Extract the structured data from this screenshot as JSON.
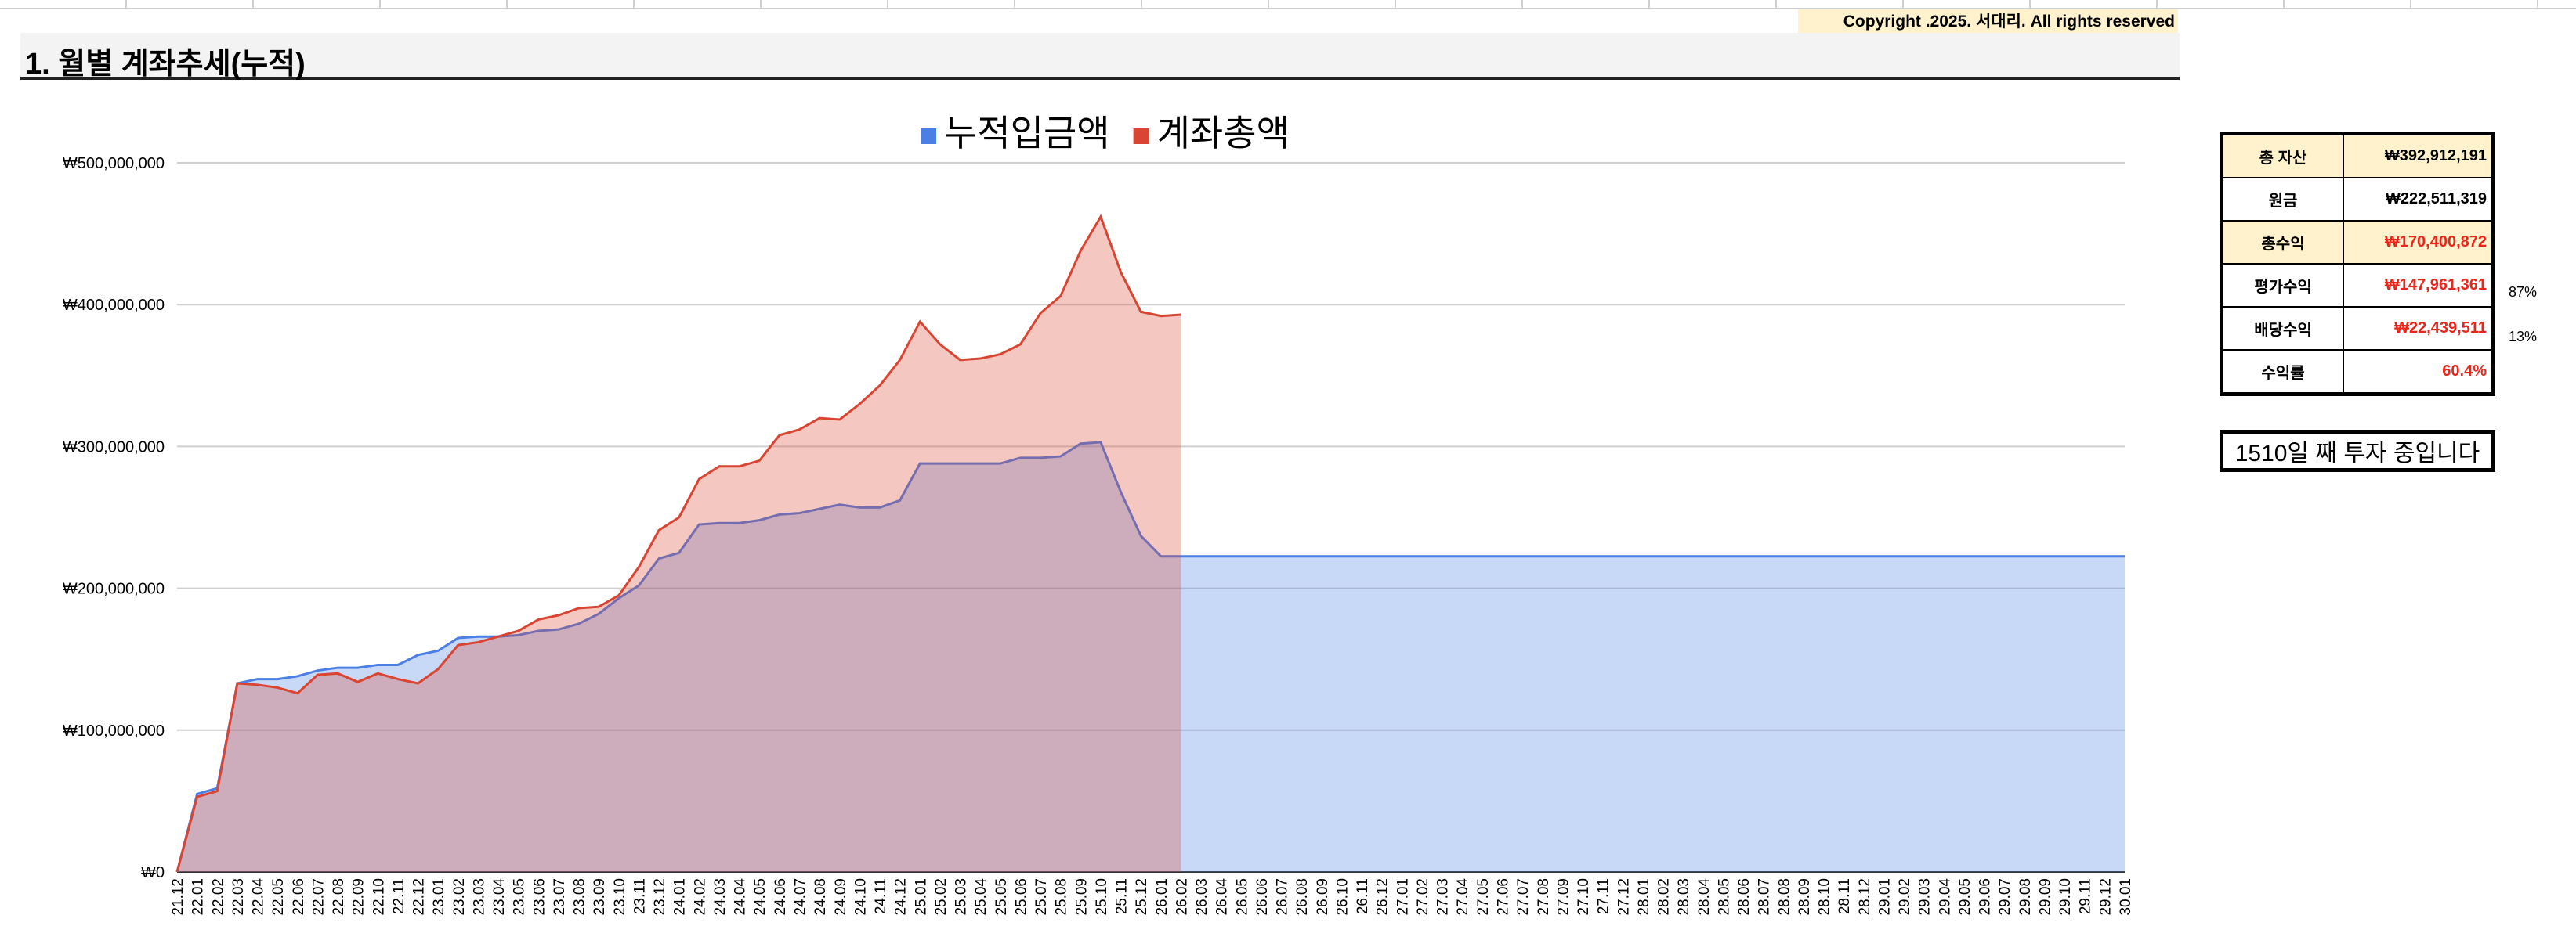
{
  "copyright": "Copyright .2025. 서대리. All rights reserved",
  "status": "1510일 째 투자 중입니다",
  "summary": [
    {
      "label": "총 자산",
      "value": "₩392,912,191"
    },
    {
      "label": "원금",
      "value": "₩222,511,319"
    },
    {
      "label": "총수익",
      "value": "₩170,400,872"
    },
    {
      "label": "평가수익",
      "value": "₩147,961,361",
      "share": "87%"
    },
    {
      "label": "배당수익",
      "value": "₩22,439,511",
      "share": "13%"
    },
    {
      "label": "수익률",
      "value": "60.4%"
    }
  ],
  "chart_data": {
    "type": "area",
    "title": "1. 월별 계좌추세(누적)",
    "categories": [
      "21.12",
      "22.01",
      "22.02",
      "22.03",
      "22.04",
      "22.05",
      "22.06",
      "22.07",
      "22.08",
      "22.09",
      "22.10",
      "22.11",
      "22.12",
      "23.01",
      "23.02",
      "23.03",
      "23.04",
      "23.05",
      "23.06",
      "23.07",
      "23.08",
      "23.09",
      "23.10",
      "23.11",
      "23.12",
      "24.01",
      "24.02",
      "24.03",
      "24.04",
      "24.05",
      "24.06",
      "24.07",
      "24.08",
      "24.09",
      "24.10",
      "24.11",
      "24.12",
      "25.01",
      "25.02",
      "25.03",
      "25.04",
      "25.05",
      "25.06",
      "25.07",
      "25.08",
      "25.09",
      "25.10",
      "25.11",
      "25.12",
      "26.01",
      "26.02",
      "26.03",
      "26.04",
      "26.05",
      "26.06",
      "26.07",
      "26.08",
      "26.09",
      "26.10",
      "26.11",
      "26.12",
      "27.01",
      "27.02",
      "27.03",
      "27.04",
      "27.05",
      "27.06",
      "27.07",
      "27.08",
      "27.09",
      "27.10",
      "27.11",
      "27.12",
      "28.01",
      "28.02",
      "28.03",
      "28.04",
      "28.05",
      "28.06",
      "28.07",
      "28.08",
      "28.09",
      "28.10",
      "28.11",
      "28.12",
      "29.01",
      "29.02",
      "29.03",
      "29.04",
      "29.05",
      "29.06",
      "29.07",
      "29.08",
      "29.09",
      "29.10",
      "29.11",
      "29.12",
      "30.01"
    ],
    "series": [
      {
        "name": "누적입금액",
        "color": "#4a7fe6",
        "values": [
          0,
          55000000,
          59000000,
          133000000,
          136000000,
          136000000,
          138000000,
          142000000,
          144000000,
          144000000,
          146000000,
          146000000,
          153000000,
          156000000,
          165000000,
          166000000,
          166000000,
          167000000,
          170000000,
          171000000,
          175000000,
          182000000,
          193000000,
          202000000,
          221000000,
          225000000,
          245000000,
          246000000,
          246000000,
          248000000,
          252000000,
          253000000,
          256000000,
          259000000,
          257000000,
          257000000,
          262000000,
          288000000,
          288000000,
          288000000,
          288000000,
          288000000,
          292000000,
          292000000,
          293000000,
          302000000,
          303000000,
          268000000,
          237000000,
          222511319,
          222511319,
          222511319,
          222511319,
          222511319,
          222511319,
          222511319,
          222511319,
          222511319,
          222511319,
          222511319,
          222511319,
          222511319,
          222511319,
          222511319,
          222511319,
          222511319,
          222511319,
          222511319,
          222511319,
          222511319,
          222511319,
          222511319,
          222511319,
          222511319,
          222511319,
          222511319,
          222511319,
          222511319,
          222511319,
          222511319,
          222511319,
          222511319,
          222511319,
          222511319,
          222511319,
          222511319,
          222511319,
          222511319,
          222511319,
          222511319,
          222511319,
          222511319,
          222511319,
          222511319,
          222511319,
          222511319,
          222511319,
          222511319
        ]
      },
      {
        "name": "계좌총액",
        "color": "#d94532",
        "values": [
          0,
          53000000,
          57000000,
          133000000,
          132000000,
          130000000,
          126000000,
          139000000,
          140000000,
          134000000,
          140000000,
          136000000,
          133000000,
          143000000,
          160000000,
          162000000,
          166000000,
          170000000,
          178000000,
          181000000,
          186000000,
          187000000,
          195000000,
          215000000,
          241000000,
          250000000,
          277000000,
          286000000,
          286000000,
          290000000,
          308000000,
          312000000,
          320000000,
          319000000,
          330000000,
          343000000,
          361000000,
          388000000,
          372000000,
          361000000,
          362000000,
          365000000,
          372000000,
          394000000,
          406000000,
          438000000,
          462000000,
          423000000,
          395000000,
          392000000,
          392912191,
          null,
          null,
          null,
          null,
          null,
          null,
          null,
          null,
          null,
          null,
          null,
          null,
          null,
          null,
          null,
          null,
          null,
          null,
          null,
          null,
          null,
          null,
          null,
          null,
          null,
          null,
          null,
          null,
          null,
          null,
          null,
          null,
          null,
          null,
          null,
          null,
          null,
          null,
          null,
          null,
          null,
          null,
          null,
          null,
          null,
          null,
          null
        ]
      }
    ],
    "ylim": [
      0,
      500000000
    ],
    "yticks": [
      {
        "value": 0,
        "label": "₩0"
      },
      {
        "value": 100000000,
        "label": "₩100,000,000"
      },
      {
        "value": 200000000,
        "label": "₩200,000,000"
      },
      {
        "value": 300000000,
        "label": "₩300,000,000"
      },
      {
        "value": 400000000,
        "label": "₩400,000,000"
      },
      {
        "value": 500000000,
        "label": "₩500,000,000"
      }
    ],
    "grid": true,
    "legend": "top"
  }
}
